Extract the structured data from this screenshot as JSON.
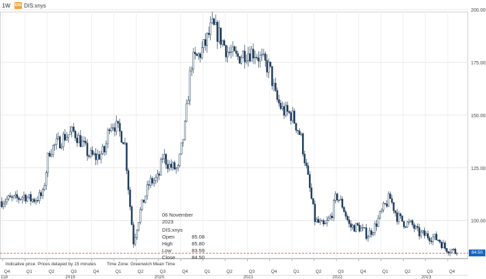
{
  "header": {
    "period": "1W",
    "ticker_badge": "DIS",
    "ticker": "DIS:xnys"
  },
  "tooltip": {
    "date": "06 November 2023",
    "symbol": "DIS:xnys",
    "rows": [
      {
        "label": "Open",
        "value": "85.08"
      },
      {
        "label": "High",
        "value": "85.80"
      },
      {
        "label": "Low",
        "value": "83.59"
      },
      {
        "label": "Close",
        "value": "84.50"
      }
    ]
  },
  "notes": {
    "delay": "Indicative price. Prices delayed by 15 minutes",
    "timezone": "Time Zone: Greenwich Mean Time"
  },
  "last_price_label": "84.50",
  "colors": {
    "candle": "#1f3b5a",
    "grid": "#e6e6e6",
    "last_price_line": "#e04848",
    "price_tag": "#1565c0"
  },
  "chart_data": {
    "type": "candlestick",
    "ticker": "DIS:xnys",
    "interval": "1W",
    "xlim": [
      2018.72,
      2023.98
    ],
    "ylim": [
      82,
      202
    ],
    "y_ticks": [
      100,
      125,
      150,
      175,
      200
    ],
    "y_tick_labels": [
      "100.00",
      "125.00",
      "150.00",
      "175.00",
      "200.00"
    ],
    "quarter_ticks": [
      {
        "t": 2018.75,
        "label": "Q4"
      },
      {
        "t": 2019.0,
        "label": "Q1"
      },
      {
        "t": 2019.25,
        "label": "Q2"
      },
      {
        "t": 2019.5,
        "label": "Q3"
      },
      {
        "t": 2019.75,
        "label": "Q4"
      },
      {
        "t": 2020.0,
        "label": "Q1"
      },
      {
        "t": 2020.25,
        "label": "Q2"
      },
      {
        "t": 2020.5,
        "label": "Q3"
      },
      {
        "t": 2020.75,
        "label": "Q4"
      },
      {
        "t": 2021.0,
        "label": "Q1"
      },
      {
        "t": 2021.25,
        "label": "Q2"
      },
      {
        "t": 2021.5,
        "label": "Q3"
      },
      {
        "t": 2021.75,
        "label": "Q4"
      },
      {
        "t": 2022.0,
        "label": "Q1"
      },
      {
        "t": 2022.25,
        "label": "Q2"
      },
      {
        "t": 2022.5,
        "label": "Q3"
      },
      {
        "t": 2022.75,
        "label": "Q4"
      },
      {
        "t": 2023.0,
        "label": "Q1"
      },
      {
        "t": 2023.25,
        "label": "Q2"
      },
      {
        "t": 2023.5,
        "label": "Q3"
      },
      {
        "t": 2023.75,
        "label": "Q4"
      }
    ],
    "year_labels": [
      {
        "t": 2018.72,
        "label": "118"
      },
      {
        "t": 2019.5,
        "label": "2019"
      },
      {
        "t": 2020.5,
        "label": "2020"
      },
      {
        "t": 2021.5,
        "label": "2021"
      },
      {
        "t": 2022.5,
        "label": "2022"
      },
      {
        "t": 2023.5,
        "label": "2023"
      }
    ],
    "last_price": 84.5,
    "price_anchors": [
      [
        2018.72,
        109
      ],
      [
        2018.8,
        110
      ],
      [
        2018.9,
        110
      ],
      [
        2019.0,
        112
      ],
      [
        2019.05,
        110
      ],
      [
        2019.1,
        110
      ],
      [
        2019.2,
        112
      ],
      [
        2019.27,
        133
      ],
      [
        2019.35,
        136
      ],
      [
        2019.45,
        140
      ],
      [
        2019.55,
        142
      ],
      [
        2019.62,
        138
      ],
      [
        2019.72,
        131
      ],
      [
        2019.8,
        130
      ],
      [
        2019.9,
        133
      ],
      [
        2019.95,
        146
      ],
      [
        2020.0,
        146
      ],
      [
        2020.06,
        142
      ],
      [
        2020.12,
        138
      ],
      [
        2020.17,
        112
      ],
      [
        2020.22,
        90
      ],
      [
        2020.3,
        105
      ],
      [
        2020.4,
        118
      ],
      [
        2020.5,
        120
      ],
      [
        2020.55,
        131
      ],
      [
        2020.62,
        126
      ],
      [
        2020.72,
        124
      ],
      [
        2020.8,
        145
      ],
      [
        2020.87,
        175
      ],
      [
        2020.95,
        178
      ],
      [
        2021.02,
        183
      ],
      [
        2021.1,
        192
      ],
      [
        2021.18,
        188
      ],
      [
        2021.28,
        180
      ],
      [
        2021.38,
        177
      ],
      [
        2021.48,
        180
      ],
      [
        2021.58,
        180
      ],
      [
        2021.68,
        175
      ],
      [
        2021.75,
        172
      ],
      [
        2021.82,
        158
      ],
      [
        2021.9,
        152
      ],
      [
        2022.0,
        150
      ],
      [
        2022.1,
        140
      ],
      [
        2022.18,
        120
      ],
      [
        2022.26,
        100
      ],
      [
        2022.36,
        97
      ],
      [
        2022.44,
        102
      ],
      [
        2022.5,
        112
      ],
      [
        2022.57,
        107
      ],
      [
        2022.65,
        97
      ],
      [
        2022.75,
        97
      ],
      [
        2022.85,
        93
      ],
      [
        2022.93,
        97
      ],
      [
        2023.02,
        105
      ],
      [
        2023.1,
        111
      ],
      [
        2023.18,
        102
      ],
      [
        2023.26,
        99
      ],
      [
        2023.35,
        98
      ],
      [
        2023.42,
        94
      ],
      [
        2023.5,
        93
      ],
      [
        2023.58,
        92
      ],
      [
        2023.65,
        91
      ],
      [
        2023.72,
        87
      ],
      [
        2023.8,
        86
      ],
      [
        2023.86,
        84.5
      ]
    ]
  }
}
